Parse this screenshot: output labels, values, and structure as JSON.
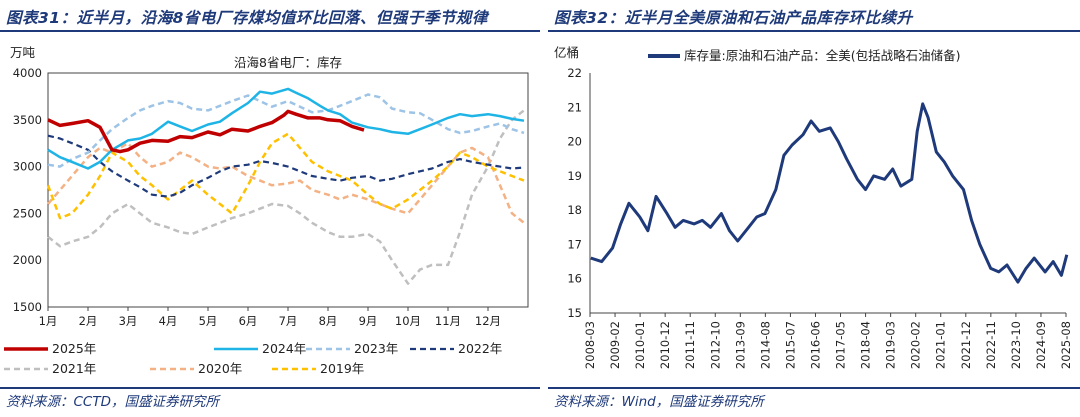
{
  "left": {
    "figure_title": "图表31：近半月，沿海8省电厂存煤均值环比回落、但强于季节规律",
    "source": "资料来源：CCTD，国盛证券研究所",
    "chart_data": {
      "type": "line",
      "title": "沿海8省电厂：库存",
      "ylabel": "万吨",
      "ylim": [
        1500,
        4000
      ],
      "yticks": [
        1500,
        2000,
        2500,
        3000,
        3500,
        4000
      ],
      "x_month_labels": [
        "1月",
        "2月",
        "3月",
        "4月",
        "5月",
        "6月",
        "7月",
        "8月",
        "9月",
        "10月",
        "11月",
        "12月"
      ],
      "x_unit": "month",
      "legend_position": "bottom",
      "series": [
        {
          "name": "2025年",
          "color": "#c00000",
          "dash": "solid",
          "width": 3.5,
          "x": [
            1,
            1.3,
            1.6,
            2,
            2.3,
            2.6,
            2.8,
            3,
            3.3,
            3.6,
            4,
            4.3,
            4.6,
            5,
            5.3,
            5.6,
            6,
            6.3,
            6.6,
            6.9,
            7,
            7.2,
            7.5,
            7.8,
            8,
            8.3,
            8.6,
            8.9
          ],
          "values": [
            3500,
            3440,
            3460,
            3490,
            3420,
            3180,
            3160,
            3180,
            3250,
            3280,
            3270,
            3320,
            3310,
            3370,
            3340,
            3400,
            3380,
            3430,
            3470,
            3550,
            3590,
            3560,
            3520,
            3520,
            3500,
            3490,
            3430,
            3390
          ]
        },
        {
          "name": "2024年",
          "color": "#1eb4e6",
          "dash": "solid",
          "width": 2.5,
          "x": [
            1,
            1.3,
            1.6,
            2,
            2.3,
            2.6,
            3,
            3.3,
            3.6,
            4,
            4.3,
            4.6,
            5,
            5.3,
            5.6,
            6,
            6.3,
            6.6,
            7,
            7.2,
            7.5,
            7.8,
            8,
            8.3,
            8.6,
            9,
            9.3,
            9.6,
            10,
            10.3,
            10.6,
            11,
            11.3,
            11.6,
            12,
            12.3,
            12.6,
            12.9
          ],
          "values": [
            3180,
            3100,
            3050,
            2980,
            3050,
            3180,
            3280,
            3300,
            3350,
            3480,
            3430,
            3380,
            3450,
            3480,
            3570,
            3680,
            3800,
            3780,
            3830,
            3790,
            3730,
            3650,
            3600,
            3560,
            3470,
            3420,
            3400,
            3370,
            3350,
            3400,
            3450,
            3520,
            3560,
            3540,
            3560,
            3540,
            3510,
            3490
          ]
        },
        {
          "name": "2023年",
          "color": "#9dc3e6",
          "dash": "dash",
          "width": 2.5,
          "x": [
            1,
            1.3,
            1.6,
            2,
            2.3,
            2.6,
            3,
            3.3,
            3.6,
            4,
            4.3,
            4.6,
            5,
            5.3,
            5.6,
            6,
            6.3,
            6.6,
            7,
            7.3,
            7.6,
            8,
            8.3,
            8.6,
            9,
            9.3,
            9.6,
            10,
            10.3,
            10.6,
            11,
            11.3,
            11.6,
            12,
            12.3,
            12.6,
            12.9
          ],
          "values": [
            3020,
            3000,
            3080,
            3150,
            3280,
            3400,
            3520,
            3600,
            3650,
            3700,
            3680,
            3620,
            3600,
            3650,
            3700,
            3760,
            3700,
            3640,
            3700,
            3640,
            3580,
            3600,
            3650,
            3700,
            3770,
            3740,
            3620,
            3580,
            3570,
            3500,
            3400,
            3360,
            3380,
            3430,
            3460,
            3400,
            3360
          ]
        },
        {
          "name": "2022年",
          "color": "#1f3a7a",
          "dash": "dash",
          "width": 2.2,
          "x": [
            1,
            1.3,
            1.6,
            2,
            2.3,
            2.6,
            3,
            3.3,
            3.6,
            4,
            4.3,
            4.6,
            5,
            5.3,
            5.6,
            6,
            6.3,
            6.6,
            7,
            7.3,
            7.6,
            8,
            8.3,
            8.6,
            9,
            9.3,
            9.6,
            10,
            10.3,
            10.6,
            11,
            11.3,
            11.6,
            12,
            12.3,
            12.6,
            12.9
          ],
          "values": [
            3330,
            3300,
            3250,
            3180,
            3050,
            2950,
            2850,
            2780,
            2700,
            2680,
            2720,
            2800,
            2880,
            2950,
            3000,
            3020,
            3060,
            3040,
            3000,
            2950,
            2900,
            2870,
            2850,
            2880,
            2900,
            2850,
            2870,
            2920,
            2950,
            2980,
            3050,
            3080,
            3050,
            3020,
            3000,
            2980,
            2990
          ]
        },
        {
          "name": "2021年",
          "color": "#bfbfbf",
          "dash": "dash",
          "width": 2.5,
          "x": [
            1,
            1.3,
            1.6,
            2,
            2.3,
            2.6,
            3,
            3.3,
            3.6,
            4,
            4.3,
            4.6,
            5,
            5.3,
            5.6,
            6,
            6.3,
            6.6,
            7,
            7.3,
            7.6,
            8,
            8.3,
            8.6,
            9,
            9.3,
            9.6,
            10,
            10.3,
            10.6,
            11,
            11.3,
            11.6,
            12,
            12.3,
            12.6,
            12.9
          ],
          "values": [
            2250,
            2150,
            2200,
            2250,
            2350,
            2500,
            2600,
            2500,
            2400,
            2350,
            2300,
            2280,
            2350,
            2400,
            2450,
            2500,
            2550,
            2600,
            2580,
            2500,
            2400,
            2300,
            2250,
            2250,
            2280,
            2200,
            2000,
            1750,
            1900,
            1950,
            1950,
            2300,
            2700,
            3000,
            3300,
            3500,
            3600
          ]
        },
        {
          "name": "2020年",
          "color": "#f4b183",
          "dash": "dash",
          "width": 2.5,
          "x": [
            1,
            1.3,
            1.6,
            2,
            2.3,
            2.6,
            3,
            3.3,
            3.6,
            4,
            4.3,
            4.6,
            5,
            5.3,
            5.6,
            6,
            6.3,
            6.6,
            7,
            7.3,
            7.6,
            8,
            8.3,
            8.6,
            9,
            9.3,
            9.6,
            10,
            10.3,
            10.6,
            11,
            11.3,
            11.6,
            12,
            12.3,
            12.6,
            12.9
          ],
          "values": [
            2600,
            2750,
            2900,
            3100,
            3200,
            3150,
            3250,
            3100,
            3000,
            3050,
            3150,
            3100,
            3000,
            2980,
            3000,
            2900,
            2850,
            2800,
            2820,
            2850,
            2750,
            2700,
            2650,
            2700,
            2650,
            2600,
            2550,
            2500,
            2650,
            2800,
            3000,
            3150,
            3200,
            3100,
            2800,
            2500,
            2400
          ]
        },
        {
          "name": "2019年",
          "color": "#ffc000",
          "dash": "dash",
          "width": 2.5,
          "x": [
            1,
            1.3,
            1.6,
            2,
            2.3,
            2.6,
            3,
            3.3,
            3.6,
            4,
            4.3,
            4.6,
            5,
            5.3,
            5.6,
            6,
            6.3,
            6.6,
            7,
            7.3,
            7.6,
            8,
            8.3,
            8.6,
            9,
            9.3,
            9.6,
            10,
            10.3,
            10.6,
            11,
            11.3,
            11.6,
            12,
            12.3,
            12.6,
            12.9
          ],
          "values": [
            2800,
            2450,
            2500,
            2700,
            2900,
            3150,
            3050,
            2900,
            2800,
            2650,
            2750,
            2850,
            2700,
            2600,
            2500,
            2800,
            3050,
            3250,
            3350,
            3200,
            3050,
            2950,
            2900,
            2850,
            2700,
            2600,
            2550,
            2650,
            2750,
            2850,
            3000,
            3150,
            3100,
            3000,
            2950,
            2900,
            2850
          ]
        }
      ]
    }
  },
  "right": {
    "figure_title": "图表32：近半月全美原油和石油产品库存环比续升",
    "source": "资料来源：Wind，国盛证券研究所",
    "chart_data": {
      "type": "line",
      "title": "",
      "ylabel": "亿桶",
      "ylim": [
        15,
        22
      ],
      "yticks": [
        15,
        16,
        17,
        18,
        19,
        20,
        21,
        22
      ],
      "x_tick_labels": [
        "2008-03",
        "2009-02",
        "2010-01",
        "2010-12",
        "2011-11",
        "2012-10",
        "2013-09",
        "2014-08",
        "2015-07",
        "2016-06",
        "2017-05",
        "2018-04",
        "2019-03",
        "2020-02",
        "2021-01",
        "2021-12",
        "2022-11",
        "2023-10",
        "2024-09",
        "2025-08"
      ],
      "legend_position": "top",
      "series": [
        {
          "name": "库存量:原油和石油产品：全美(包括战略石油储备)",
          "color": "#1f3a7a",
          "width": 3,
          "x": [
            2008.2,
            2008.6,
            2009.0,
            2009.3,
            2009.6,
            2010.0,
            2010.3,
            2010.6,
            2011.0,
            2011.3,
            2011.6,
            2012.0,
            2012.3,
            2012.6,
            2013.0,
            2013.3,
            2013.6,
            2014.0,
            2014.3,
            2014.6,
            2015.0,
            2015.3,
            2015.6,
            2016.0,
            2016.3,
            2016.6,
            2017.0,
            2017.3,
            2017.6,
            2018.0,
            2018.3,
            2018.6,
            2019.0,
            2019.3,
            2019.6,
            2020.0,
            2020.2,
            2020.4,
            2020.6,
            2020.9,
            2021.2,
            2021.5,
            2021.9,
            2022.2,
            2022.5,
            2022.9,
            2023.2,
            2023.5,
            2023.9,
            2024.2,
            2024.5,
            2024.9,
            2025.2,
            2025.5,
            2025.7
          ],
          "values": [
            16.6,
            16.5,
            16.9,
            17.6,
            18.2,
            17.8,
            17.4,
            18.4,
            17.9,
            17.5,
            17.7,
            17.6,
            17.7,
            17.5,
            17.9,
            17.4,
            17.1,
            17.5,
            17.8,
            17.9,
            18.6,
            19.6,
            19.9,
            20.2,
            20.6,
            20.3,
            20.4,
            20.0,
            19.5,
            18.9,
            18.6,
            19.0,
            18.9,
            19.2,
            18.7,
            18.9,
            20.3,
            21.1,
            20.7,
            19.7,
            19.4,
            19.0,
            18.6,
            17.7,
            17.0,
            16.3,
            16.2,
            16.4,
            15.9,
            16.3,
            16.6,
            16.2,
            16.5,
            16.1,
            16.7
          ]
        }
      ]
    }
  }
}
